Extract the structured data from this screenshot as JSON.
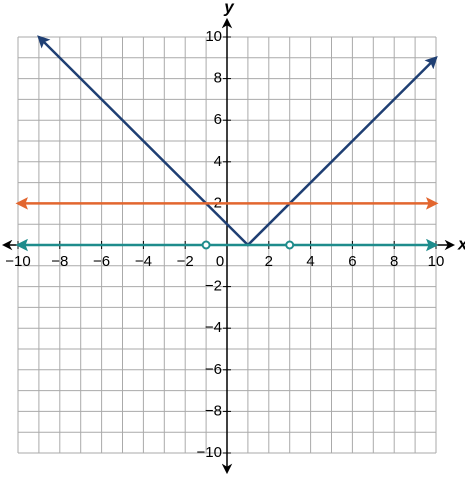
{
  "chart_data": {
    "type": "line",
    "x_label": "x",
    "y_label": "y",
    "xlim": [
      -10,
      10
    ],
    "ylim": [
      -10,
      10
    ],
    "xticks": [
      {
        "value": -10,
        "label": "−10"
      },
      {
        "value": -8,
        "label": "−8"
      },
      {
        "value": -6,
        "label": "−6"
      },
      {
        "value": -4,
        "label": "−4"
      },
      {
        "value": -2,
        "label": "−2"
      },
      0,
      2,
      4,
      6,
      8,
      10
    ],
    "yticks": [
      {
        "value": -10,
        "label": "−10"
      },
      {
        "value": -8,
        "label": "−8"
      },
      {
        "value": -6,
        "label": "−6"
      },
      {
        "value": -4,
        "label": "−4"
      },
      {
        "value": -2,
        "label": "−2"
      },
      2,
      4,
      6,
      8,
      10
    ],
    "grid": true,
    "grid_spacing": 1,
    "series": [
      {
        "color": "#1f3f73",
        "x": [
          -9,
          1,
          10
        ],
        "values": [
          10,
          0,
          9
        ]
      },
      {
        "color": "#e2662f",
        "x": [
          -10,
          10
        ],
        "values": [
          2,
          2
        ]
      },
      {
        "color": "#1e8c8c",
        "x": [
          -10,
          10
        ],
        "values": [
          0,
          0
        ],
        "open_points": {
          "x": [
            -1,
            3
          ],
          "values": [
            0,
            0
          ]
        }
      }
    ]
  }
}
